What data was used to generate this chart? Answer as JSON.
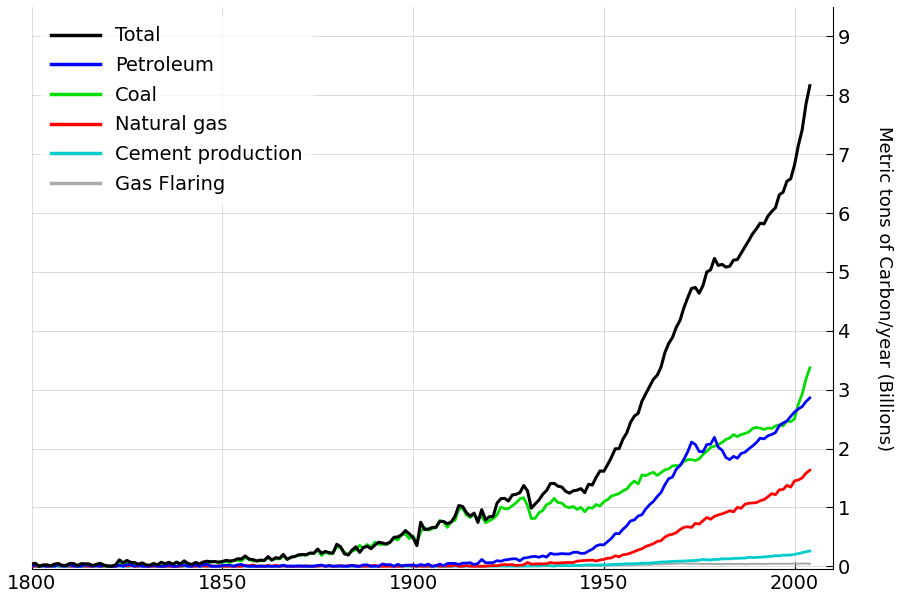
{
  "ylabel": "Metric tons of Carbon/year (Billions)",
  "xlim": [
    1800,
    2010
  ],
  "ylim": [
    -0.05,
    9.5
  ],
  "yticks": [
    0,
    1,
    2,
    3,
    4,
    5,
    6,
    7,
    8,
    9
  ],
  "xticks": [
    1800,
    1850,
    1900,
    1950,
    2000
  ],
  "legend": [
    "Total",
    "Petroleum",
    "Coal",
    "Natural gas",
    "Cement production",
    "Gas Flaring"
  ],
  "colors": {
    "Total": "#000000",
    "Petroleum": "#0000ff",
    "Coal": "#00dd00",
    "Natural gas": "#ff0000",
    "Cement production": "#00cccc",
    "Gas Flaring": "#aaaaaa"
  },
  "linewidths": {
    "Total": 2.2,
    "Petroleum": 2.0,
    "Coal": 2.0,
    "Natural gas": 2.0,
    "Cement production": 2.0,
    "Gas Flaring": 1.5
  },
  "legend_fontsize": 14,
  "tick_fontsize": 14,
  "ylabel_fontsize": 13
}
